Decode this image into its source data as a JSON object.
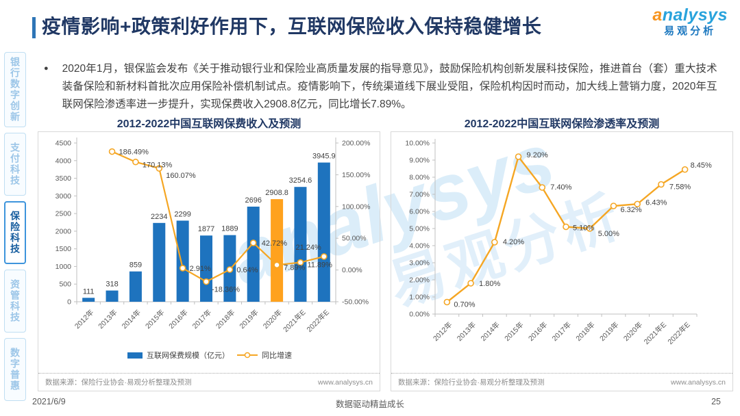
{
  "header": {
    "title": "疫情影响+政策利好作用下，互联网保险收入保持稳健增长",
    "logo": {
      "en": "analysys",
      "cn": "易观分析"
    }
  },
  "sidebar": {
    "items": [
      {
        "label": "银行数字创新",
        "active": false
      },
      {
        "label": "支付科技",
        "active": false
      },
      {
        "label": "保险科技",
        "active": true
      },
      {
        "label": "资管科技",
        "active": false
      },
      {
        "label": "数字普惠",
        "active": false
      }
    ]
  },
  "bullet": {
    "text": "2020年1月，银保监会发布《关于推动银行业和保险业高质量发展的指导意见》，鼓励保险机构创新发展科技保险，推进首台（套）重大技术装备保险和新材料首批次应用保险补偿机制试点。疫情影响下，传统渠道线下展业受阻，保险机构因时而动，加大线上营销力度，2020年互联网保险渗透率进一步提升，实现保费收入2908.8亿元，同比增长7.89%。"
  },
  "chart_data": [
    {
      "id": "premium",
      "type": "bar",
      "title": "2012-2022中国互联网保费收入及预测",
      "categories": [
        "2012年",
        "2013年",
        "2014年",
        "2015年",
        "2016年",
        "2017年",
        "2018年",
        "2019年",
        "2020年",
        "2021年E",
        "2022年E"
      ],
      "series": [
        {
          "name": "互联网保费规模（亿元）",
          "type": "bar",
          "values": [
            111,
            318,
            859,
            2234,
            2299,
            1877,
            1889,
            2696,
            2908.8,
            3254.6,
            3945.9
          ],
          "labels": [
            "111",
            "318",
            "859",
            "2234",
            "2299",
            "1877",
            "1889",
            "2696",
            "2908.8",
            "3254.6",
            "3945.9"
          ]
        },
        {
          "name": "同比增速",
          "type": "line",
          "values": [
            null,
            186.49,
            170.13,
            160.07,
            2.91,
            -18.36,
            0.64,
            42.72,
            7.89,
            11.89,
            21.24
          ],
          "labels": [
            null,
            "186.49%",
            "170.13%",
            "160.07%",
            "2.91%",
            "-18.36%",
            "0.64%",
            "42.72%",
            "7.89%",
            "11.89%",
            "21.24%"
          ]
        }
      ],
      "y_left": {
        "min": 0,
        "max": 4500,
        "step": 500
      },
      "y_right": {
        "min": -50,
        "max": 200,
        "step": 50,
        "format": "percent"
      },
      "highlight_index": 8,
      "colors": {
        "bar": "#1E73BE",
        "highlight": "#FFA21E",
        "line": "#F5A623"
      },
      "legend_position": "bottom",
      "grid": false,
      "source": "数据来源：保险行业协会·易观分析整理及预测",
      "site": "www.analysys.cn"
    },
    {
      "id": "penetration",
      "type": "line",
      "title": "2012-2022中国互联网保险渗透率及预测",
      "categories": [
        "2012年",
        "2013年",
        "2014年",
        "2015年",
        "2016年",
        "2017年",
        "2018年",
        "2019年",
        "2020年",
        "2021年E",
        "2022年E"
      ],
      "series": [
        {
          "name": "互联网保险渗透率",
          "type": "line",
          "values": [
            0.7,
            1.8,
            4.2,
            9.2,
            7.4,
            5.1,
            5.0,
            6.32,
            6.43,
            7.58,
            8.45
          ],
          "labels": [
            "0.70%",
            "1.80%",
            "4.20%",
            "9.20%",
            "7.40%",
            "5.10%",
            "5.00%",
            "6.32%",
            "6.43%",
            "7.58%",
            "8.45%"
          ]
        }
      ],
      "ylim": [
        0,
        10
      ],
      "y_step": 1,
      "colors": {
        "line": "#F5A623"
      },
      "grid": false,
      "source": "数据来源：保险行业协会·易观分析整理及预测",
      "site": "www.analysys.cn"
    }
  ],
  "watermark": {
    "en": "analysys",
    "cn": "易观分析"
  },
  "footer": {
    "date": "2021/6/9",
    "slogan": "数据驱动精益成长",
    "page": "25"
  }
}
